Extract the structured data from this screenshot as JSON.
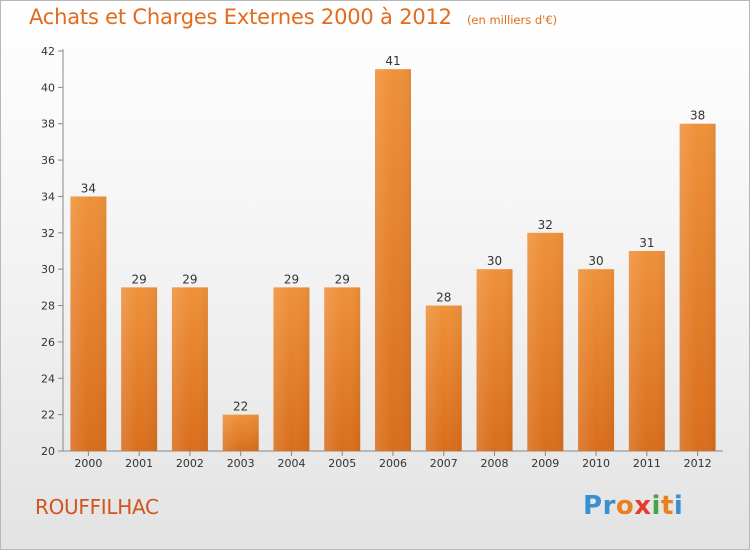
{
  "page": {
    "commune": "ROUFFILHAC",
    "logo_letters": [
      {
        "char": "P",
        "color": "#3a8fd0"
      },
      {
        "char": "r",
        "color": "#3a8fd0"
      },
      {
        "char": "o",
        "color": "#e8801c"
      },
      {
        "char": "x",
        "color": "#e63c2c"
      },
      {
        "char": "i",
        "color": "#4aa34a"
      },
      {
        "char": "t",
        "color": "#e8801c"
      },
      {
        "char": "i",
        "color": "#3a8fd0"
      }
    ]
  },
  "chart_data": {
    "type": "bar",
    "title": "Achats et Charges Externes 2000 à 2012",
    "subtitle": "(en milliers d'€)",
    "xlabel": "",
    "ylabel": "",
    "categories": [
      "2000",
      "2001",
      "2002",
      "2003",
      "2004",
      "2005",
      "2006",
      "2007",
      "2008",
      "2009",
      "2010",
      "2011",
      "2012"
    ],
    "values": [
      34,
      29,
      29,
      22,
      29,
      29,
      41,
      28,
      30,
      32,
      30,
      31,
      38
    ],
    "ylim": [
      20,
      42
    ],
    "yticks": [
      20,
      22,
      24,
      26,
      28,
      30,
      32,
      34,
      36,
      38,
      40,
      42
    ],
    "grid": false,
    "bar_color": "#ef913a",
    "bar_color_dark": "#d96e1c"
  }
}
